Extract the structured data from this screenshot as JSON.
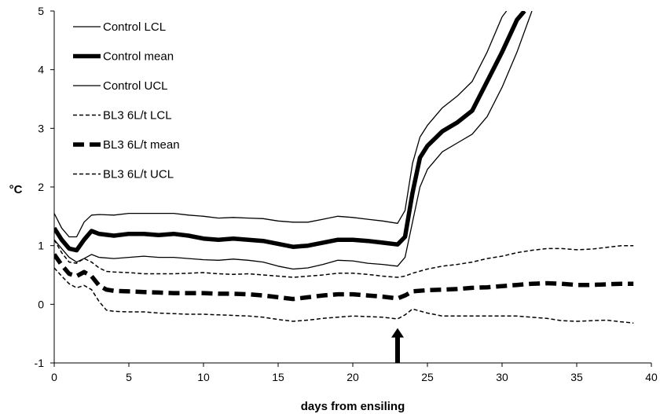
{
  "chart_data": {
    "type": "line",
    "title": "",
    "xlabel": "days from ensiling",
    "ylabel": "°C",
    "xlim": [
      0,
      40
    ],
    "ylim": [
      -1,
      5
    ],
    "x_ticks": [
      0,
      5,
      10,
      15,
      20,
      25,
      30,
      35,
      40
    ],
    "y_ticks": [
      -1,
      0,
      1,
      2,
      3,
      4,
      5
    ],
    "grid": false,
    "legend_position": "top-left",
    "annotation": {
      "type": "arrow",
      "x": 23.0,
      "pointing": "up",
      "y_tip": -0.5
    },
    "series": [
      {
        "name": "Control LCL",
        "style": "solid-thin",
        "points": [
          [
            0,
            1.1
          ],
          [
            0.5,
            0.95
          ],
          [
            1,
            0.8
          ],
          [
            1.5,
            0.72
          ],
          [
            2,
            0.78
          ],
          [
            2.5,
            0.85
          ],
          [
            3,
            0.8
          ],
          [
            4,
            0.78
          ],
          [
            5,
            0.8
          ],
          [
            6,
            0.82
          ],
          [
            7,
            0.8
          ],
          [
            8,
            0.8
          ],
          [
            9,
            0.78
          ],
          [
            10,
            0.76
          ],
          [
            11,
            0.75
          ],
          [
            12,
            0.77
          ],
          [
            13,
            0.75
          ],
          [
            14,
            0.72
          ],
          [
            15,
            0.65
          ],
          [
            16,
            0.6
          ],
          [
            17,
            0.62
          ],
          [
            18,
            0.68
          ],
          [
            19,
            0.75
          ],
          [
            20,
            0.74
          ],
          [
            21,
            0.7
          ],
          [
            22,
            0.68
          ],
          [
            23,
            0.65
          ],
          [
            23.5,
            0.8
          ],
          [
            24,
            1.4
          ],
          [
            24.5,
            2.0
          ],
          [
            25,
            2.3
          ],
          [
            26,
            2.6
          ],
          [
            27,
            2.75
          ],
          [
            28,
            2.9
          ],
          [
            29,
            3.2
          ],
          [
            30,
            3.7
          ],
          [
            31,
            4.3
          ],
          [
            32,
            5.0
          ]
        ]
      },
      {
        "name": "Control mean",
        "style": "solid-thick",
        "points": [
          [
            0,
            1.3
          ],
          [
            0.5,
            1.1
          ],
          [
            1,
            0.95
          ],
          [
            1.5,
            0.92
          ],
          [
            2,
            1.1
          ],
          [
            2.5,
            1.25
          ],
          [
            3,
            1.2
          ],
          [
            4,
            1.17
          ],
          [
            5,
            1.2
          ],
          [
            6,
            1.2
          ],
          [
            7,
            1.18
          ],
          [
            8,
            1.2
          ],
          [
            9,
            1.17
          ],
          [
            10,
            1.12
          ],
          [
            11,
            1.1
          ],
          [
            12,
            1.12
          ],
          [
            13,
            1.1
          ],
          [
            14,
            1.08
          ],
          [
            15,
            1.03
          ],
          [
            16,
            0.98
          ],
          [
            17,
            1.0
          ],
          [
            18,
            1.05
          ],
          [
            19,
            1.1
          ],
          [
            20,
            1.1
          ],
          [
            21,
            1.08
          ],
          [
            22,
            1.05
          ],
          [
            23,
            1.02
          ],
          [
            23.5,
            1.15
          ],
          [
            24,
            1.9
          ],
          [
            24.5,
            2.5
          ],
          [
            25,
            2.7
          ],
          [
            26,
            2.95
          ],
          [
            27,
            3.1
          ],
          [
            28,
            3.3
          ],
          [
            29,
            3.8
          ],
          [
            30,
            4.3
          ],
          [
            31,
            4.85
          ],
          [
            31.5,
            5.0
          ]
        ]
      },
      {
        "name": "Control UCL",
        "style": "solid-thin",
        "points": [
          [
            0,
            1.55
          ],
          [
            0.5,
            1.3
          ],
          [
            1,
            1.15
          ],
          [
            1.5,
            1.15
          ],
          [
            2,
            1.4
          ],
          [
            2.5,
            1.52
          ],
          [
            3,
            1.53
          ],
          [
            4,
            1.52
          ],
          [
            5,
            1.55
          ],
          [
            6,
            1.55
          ],
          [
            7,
            1.55
          ],
          [
            8,
            1.55
          ],
          [
            9,
            1.52
          ],
          [
            10,
            1.5
          ],
          [
            11,
            1.47
          ],
          [
            12,
            1.48
          ],
          [
            13,
            1.47
          ],
          [
            14,
            1.46
          ],
          [
            15,
            1.42
          ],
          [
            16,
            1.4
          ],
          [
            17,
            1.4
          ],
          [
            18,
            1.45
          ],
          [
            19,
            1.5
          ],
          [
            20,
            1.48
          ],
          [
            21,
            1.45
          ],
          [
            22,
            1.42
          ],
          [
            23,
            1.38
          ],
          [
            23.5,
            1.6
          ],
          [
            24,
            2.4
          ],
          [
            24.5,
            2.85
          ],
          [
            25,
            3.05
          ],
          [
            26,
            3.35
          ],
          [
            27,
            3.55
          ],
          [
            28,
            3.8
          ],
          [
            29,
            4.3
          ],
          [
            30,
            4.9
          ],
          [
            30.3,
            5.0
          ]
        ]
      },
      {
        "name": "BL3 6L/t LCL",
        "style": "dashed-thin",
        "points": [
          [
            0,
            0.62
          ],
          [
            0.5,
            0.48
          ],
          [
            1,
            0.35
          ],
          [
            1.5,
            0.28
          ],
          [
            2,
            0.32
          ],
          [
            2.5,
            0.25
          ],
          [
            3,
            0.05
          ],
          [
            3.5,
            -0.1
          ],
          [
            4,
            -0.12
          ],
          [
            5,
            -0.13
          ],
          [
            6,
            -0.13
          ],
          [
            7,
            -0.15
          ],
          [
            8,
            -0.16
          ],
          [
            9,
            -0.17
          ],
          [
            10,
            -0.17
          ],
          [
            11,
            -0.18
          ],
          [
            12,
            -0.19
          ],
          [
            13,
            -0.2
          ],
          [
            14,
            -0.22
          ],
          [
            15,
            -0.26
          ],
          [
            16,
            -0.29
          ],
          [
            17,
            -0.27
          ],
          [
            18,
            -0.24
          ],
          [
            19,
            -0.22
          ],
          [
            20,
            -0.2
          ],
          [
            21,
            -0.21
          ],
          [
            22,
            -0.22
          ],
          [
            23,
            -0.25
          ],
          [
            23.5,
            -0.18
          ],
          [
            24,
            -0.08
          ],
          [
            25,
            -0.15
          ],
          [
            26,
            -0.2
          ],
          [
            27,
            -0.2
          ],
          [
            28,
            -0.2
          ],
          [
            29,
            -0.2
          ],
          [
            30,
            -0.2
          ],
          [
            31,
            -0.2
          ],
          [
            32,
            -0.22
          ],
          [
            33,
            -0.24
          ],
          [
            34,
            -0.28
          ],
          [
            35,
            -0.29
          ],
          [
            36,
            -0.28
          ],
          [
            37,
            -0.27
          ],
          [
            38,
            -0.3
          ],
          [
            38.8,
            -0.32
          ]
        ]
      },
      {
        "name": "BL3 6L/t mean",
        "style": "dashed-thick",
        "points": [
          [
            0,
            0.85
          ],
          [
            0.5,
            0.67
          ],
          [
            1,
            0.52
          ],
          [
            1.5,
            0.48
          ],
          [
            2,
            0.55
          ],
          [
            2.5,
            0.48
          ],
          [
            3,
            0.32
          ],
          [
            3.5,
            0.25
          ],
          [
            4,
            0.23
          ],
          [
            5,
            0.22
          ],
          [
            6,
            0.21
          ],
          [
            7,
            0.2
          ],
          [
            8,
            0.19
          ],
          [
            9,
            0.19
          ],
          [
            10,
            0.19
          ],
          [
            11,
            0.18
          ],
          [
            12,
            0.18
          ],
          [
            13,
            0.17
          ],
          [
            14,
            0.15
          ],
          [
            15,
            0.12
          ],
          [
            16,
            0.09
          ],
          [
            17,
            0.12
          ],
          [
            18,
            0.15
          ],
          [
            19,
            0.17
          ],
          [
            20,
            0.17
          ],
          [
            21,
            0.15
          ],
          [
            22,
            0.13
          ],
          [
            23,
            0.1
          ],
          [
            23.5,
            0.15
          ],
          [
            24,
            0.22
          ],
          [
            25,
            0.24
          ],
          [
            26,
            0.25
          ],
          [
            27,
            0.26
          ],
          [
            28,
            0.28
          ],
          [
            29,
            0.29
          ],
          [
            30,
            0.31
          ],
          [
            31,
            0.33
          ],
          [
            32,
            0.35
          ],
          [
            33,
            0.36
          ],
          [
            34,
            0.35
          ],
          [
            35,
            0.33
          ],
          [
            36,
            0.33
          ],
          [
            37,
            0.34
          ],
          [
            38,
            0.35
          ],
          [
            38.8,
            0.35
          ]
        ]
      },
      {
        "name": "BL3 6L/t UCL",
        "style": "dashed-thin",
        "points": [
          [
            0,
            1.1
          ],
          [
            0.5,
            0.88
          ],
          [
            1,
            0.72
          ],
          [
            1.5,
            0.7
          ],
          [
            2,
            0.78
          ],
          [
            2.5,
            0.72
          ],
          [
            3,
            0.62
          ],
          [
            3.5,
            0.56
          ],
          [
            4,
            0.55
          ],
          [
            5,
            0.54
          ],
          [
            6,
            0.52
          ],
          [
            7,
            0.52
          ],
          [
            8,
            0.52
          ],
          [
            9,
            0.53
          ],
          [
            10,
            0.54
          ],
          [
            11,
            0.52
          ],
          [
            12,
            0.51
          ],
          [
            13,
            0.52
          ],
          [
            14,
            0.5
          ],
          [
            15,
            0.48
          ],
          [
            16,
            0.46
          ],
          [
            17,
            0.48
          ],
          [
            18,
            0.5
          ],
          [
            19,
            0.53
          ],
          [
            20,
            0.53
          ],
          [
            21,
            0.51
          ],
          [
            22,
            0.48
          ],
          [
            23,
            0.46
          ],
          [
            23.5,
            0.48
          ],
          [
            24,
            0.53
          ],
          [
            25,
            0.6
          ],
          [
            26,
            0.65
          ],
          [
            27,
            0.68
          ],
          [
            28,
            0.72
          ],
          [
            29,
            0.78
          ],
          [
            30,
            0.82
          ],
          [
            31,
            0.88
          ],
          [
            32,
            0.92
          ],
          [
            33,
            0.95
          ],
          [
            34,
            0.95
          ],
          [
            35,
            0.93
          ],
          [
            36,
            0.94
          ],
          [
            37,
            0.97
          ],
          [
            38,
            1.0
          ],
          [
            38.8,
            1.0
          ]
        ]
      }
    ]
  }
}
